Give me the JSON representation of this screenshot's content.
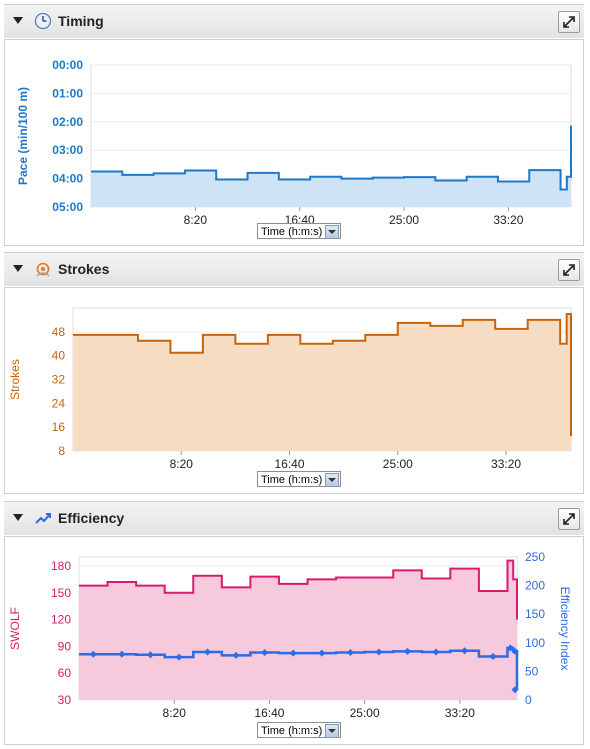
{
  "panels": {
    "timing": {
      "title": "Timing",
      "icon": "clock-icon",
      "selector": "Time (h:m:s)"
    },
    "strokes": {
      "title": "Strokes",
      "icon": "strokes-icon",
      "selector": "Time (h:m:s)"
    },
    "efficiency": {
      "title": "Efficiency",
      "icon": "efficiency-icon",
      "selector": "Time (h:m:s)"
    }
  },
  "colors": {
    "pace": "#1f78c8",
    "pace_fill": "#cfe3f7",
    "strokes": "#c8640a",
    "strokes_fill": "#f7dcc4",
    "swolf": "#d81b6e",
    "swolf_fill": "#f7c9dd",
    "efficiency": "#2e6be6"
  },
  "chart_data": [
    {
      "type": "area",
      "step": true,
      "ylabel": "Pace (min/100 m)",
      "x_ticks": [
        "8:20",
        "16:40",
        "25:00",
        "33:20"
      ],
      "x_tick_seconds": [
        500,
        1000,
        1500,
        2000
      ],
      "xlim_seconds": [
        0,
        2300
      ],
      "y_ticks": [
        "00:00",
        "01:00",
        "02:00",
        "03:00",
        "04:00",
        "05:00"
      ],
      "ylim_seconds": [
        0,
        300
      ],
      "y_inverted": true,
      "series": [
        {
          "name": "Pace",
          "x": [
            0,
            150,
            300,
            450,
            600,
            750,
            900,
            1050,
            1200,
            1350,
            1500,
            1650,
            1800,
            1950,
            2100,
            2250,
            2280,
            2300
          ],
          "values": [
            225,
            232,
            229,
            223,
            242,
            228,
            242,
            236,
            240,
            238,
            237,
            244,
            236,
            246,
            222,
            263,
            236,
            128
          ]
        }
      ]
    },
    {
      "type": "area",
      "step": true,
      "ylabel": "Strokes",
      "x_ticks": [
        "8:20",
        "16:40",
        "25:00",
        "33:20"
      ],
      "x_tick_seconds": [
        500,
        1000,
        1500,
        2000
      ],
      "xlim_seconds": [
        0,
        2300
      ],
      "y_ticks": [
        8,
        16,
        24,
        32,
        40,
        48
      ],
      "ylim": [
        8,
        56
      ],
      "series": [
        {
          "name": "Strokes",
          "x": [
            0,
            150,
            300,
            450,
            600,
            750,
            900,
            1050,
            1200,
            1350,
            1500,
            1650,
            1800,
            1950,
            2100,
            2250,
            2280,
            2300
          ],
          "values": [
            47,
            47,
            45,
            41,
            47,
            44,
            47,
            44,
            45,
            47,
            51,
            50,
            52,
            49,
            52,
            44,
            54,
            13
          ]
        }
      ]
    },
    {
      "type": "line",
      "step": true,
      "ylabel": "SWOLF",
      "y2label": "Efficiency Index",
      "x_ticks": [
        "8:20",
        "16:40",
        "25:00",
        "33:20"
      ],
      "x_tick_seconds": [
        500,
        1000,
        1500,
        2000
      ],
      "xlim_seconds": [
        0,
        2300
      ],
      "y_ticks": [
        30,
        60,
        90,
        120,
        150,
        180
      ],
      "ylim": [
        30,
        190
      ],
      "y2_ticks": [
        0,
        50,
        100,
        150,
        200,
        250
      ],
      "y2lim": [
        0,
        250
      ],
      "series": [
        {
          "name": "SWOLF",
          "axis": "left",
          "area": true,
          "x": [
            0,
            150,
            300,
            450,
            600,
            750,
            900,
            1050,
            1200,
            1350,
            1500,
            1650,
            1800,
            1950,
            2100,
            2250,
            2280,
            2300
          ],
          "values": [
            158,
            162,
            158,
            150,
            169,
            156,
            168,
            160,
            165,
            167,
            167,
            175,
            166,
            177,
            152,
            186,
            165,
            120
          ]
        },
        {
          "name": "Efficiency Index",
          "axis": "right",
          "markers": true,
          "x": [
            0,
            150,
            300,
            450,
            600,
            750,
            900,
            1050,
            1200,
            1350,
            1500,
            1650,
            1800,
            1950,
            2100,
            2250,
            2280,
            2300
          ],
          "values": [
            80,
            80,
            79,
            75,
            84,
            78,
            83,
            82,
            82,
            83,
            84,
            85,
            84,
            86,
            76,
            91,
            85,
            18
          ]
        }
      ]
    }
  ]
}
